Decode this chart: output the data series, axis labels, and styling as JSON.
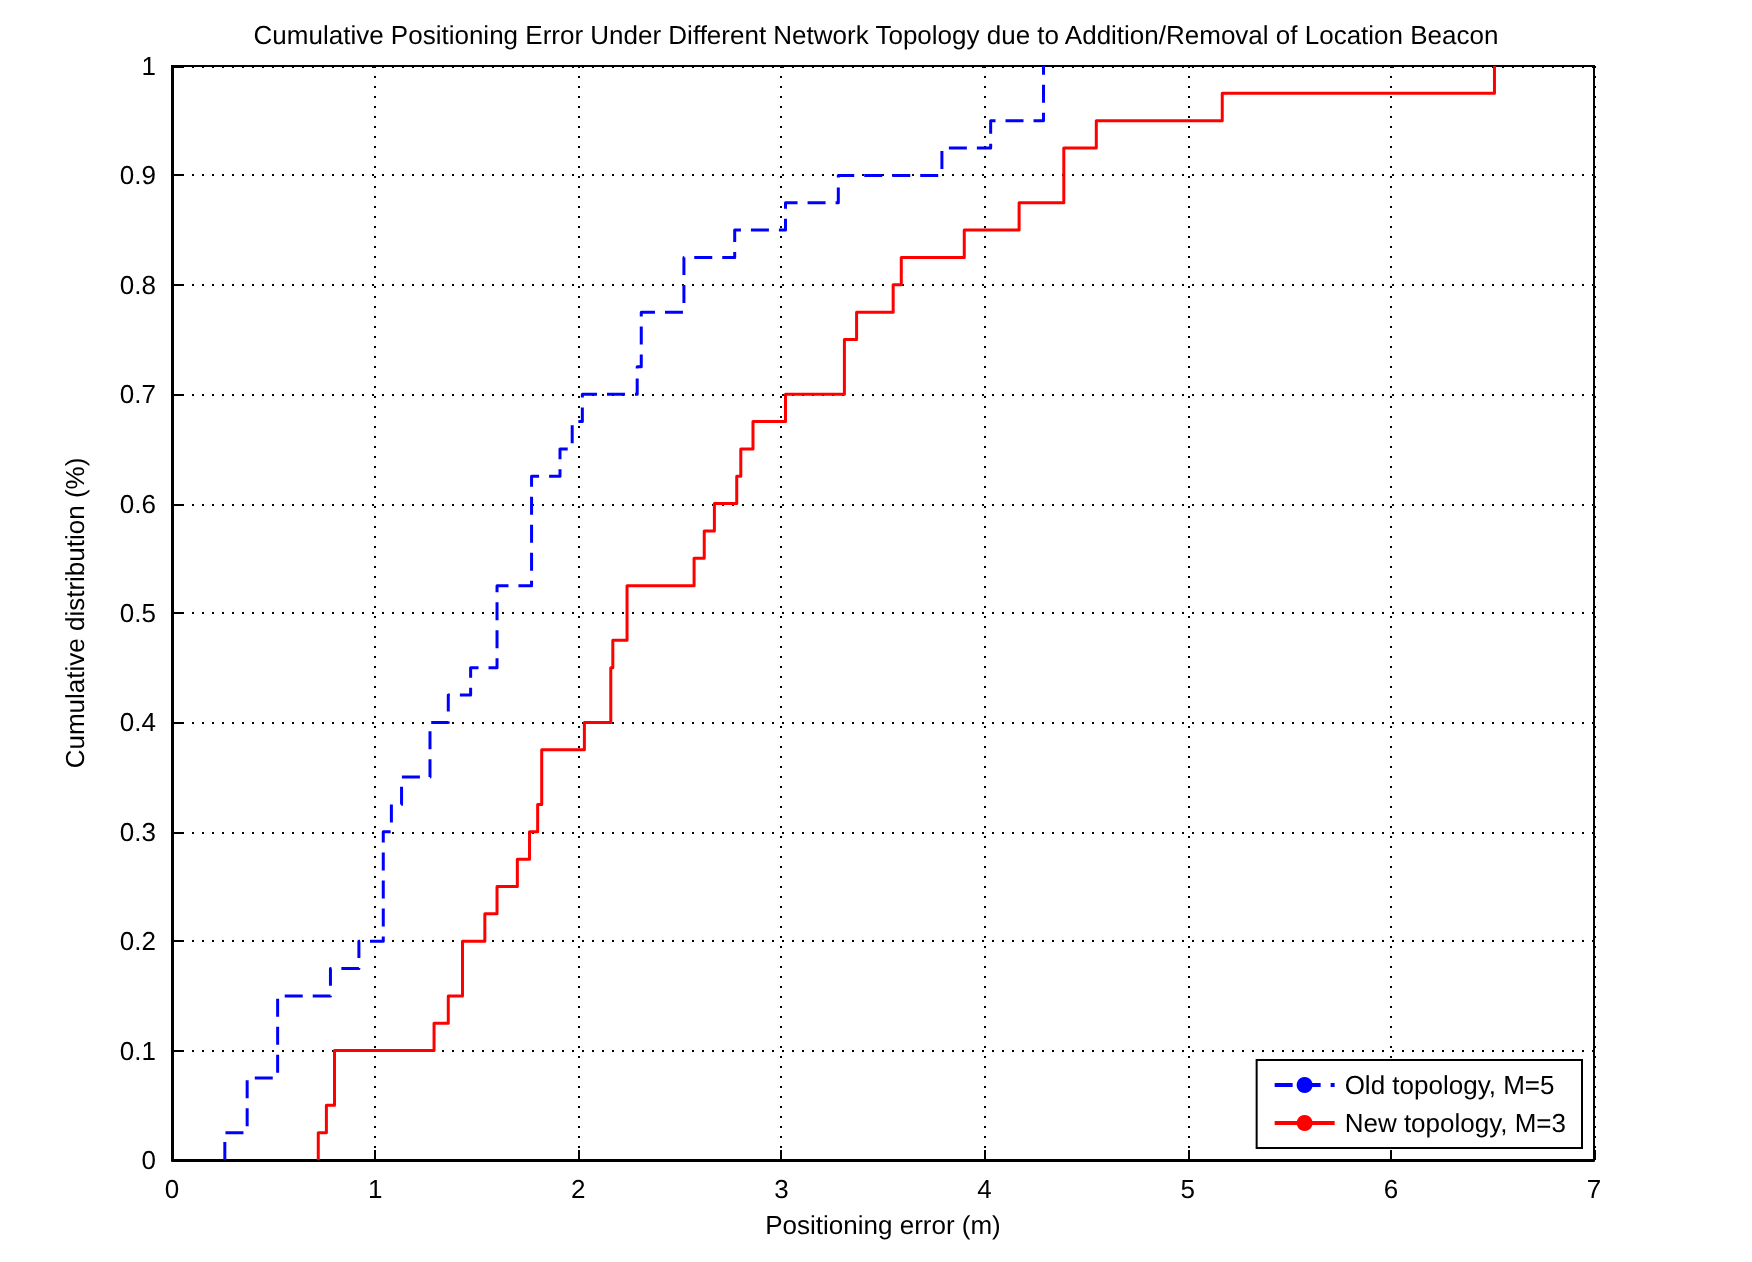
{
  "chart_data": {
    "type": "step",
    "title": "Cumulative Positioning Error Under Different Network Topology due to Addition/Removal of Location Beacon",
    "xlabel": "Positioning error (m)",
    "ylabel": "Cumulative distribution (%)",
    "series": [
      {
        "name": "Old topology, M=5",
        "color": "#0000ff",
        "line_style": "dashed",
        "x": [
          0.26,
          0.26,
          0.37,
          0.52,
          0.78,
          0.92,
          1.04,
          1.08,
          1.13,
          1.27,
          1.36,
          1.47,
          1.6,
          1.77,
          1.91,
          1.97,
          2.02,
          2.29,
          2.31,
          2.52,
          2.77,
          3.02,
          3.28,
          3.79,
          4.03,
          4.29
        ],
        "values": [
          0,
          0.025,
          0.075,
          0.15,
          0.175,
          0.2,
          0.3,
          0.325,
          0.35,
          0.4,
          0.425,
          0.45,
          0.525,
          0.625,
          0.65,
          0.675,
          0.7,
          0.725,
          0.775,
          0.825,
          0.85,
          0.875,
          0.9,
          0.925,
          0.95,
          1
        ]
      },
      {
        "name": "New topology, M=3",
        "color": "#ff0000",
        "line_style": "solid",
        "x": [
          0.72,
          0.72,
          0.76,
          0.8,
          1.29,
          1.36,
          1.43,
          1.54,
          1.6,
          1.7,
          1.76,
          1.8,
          1.82,
          2.03,
          2.16,
          2.17,
          2.24,
          2.57,
          2.62,
          2.67,
          2.78,
          2.8,
          2.86,
          3.02,
          3.31,
          3.37,
          3.55,
          3.59,
          3.9,
          4.17,
          4.39,
          4.55,
          5.17,
          6.51
        ],
        "values": [
          0,
          0.025,
          0.05,
          0.1,
          0.125,
          0.15,
          0.2,
          0.225,
          0.25,
          0.275,
          0.3,
          0.325,
          0.375,
          0.4,
          0.45,
          0.475,
          0.525,
          0.55,
          0.575,
          0.6,
          0.625,
          0.65,
          0.675,
          0.7,
          0.75,
          0.775,
          0.8,
          0.825,
          0.85,
          0.875,
          0.925,
          0.95,
          0.975,
          1
        ]
      }
    ],
    "xlim": [
      0,
      7
    ],
    "xticks": [
      0,
      1,
      2,
      3,
      4,
      5,
      6,
      7
    ],
    "ylim": [
      0,
      1
    ],
    "yticks": [
      0,
      0.1,
      0.2,
      0.3,
      0.4,
      0.5,
      0.6,
      0.7,
      0.8,
      0.9,
      1
    ],
    "grid": true,
    "legend": "bottom right",
    "marker": "none"
  }
}
